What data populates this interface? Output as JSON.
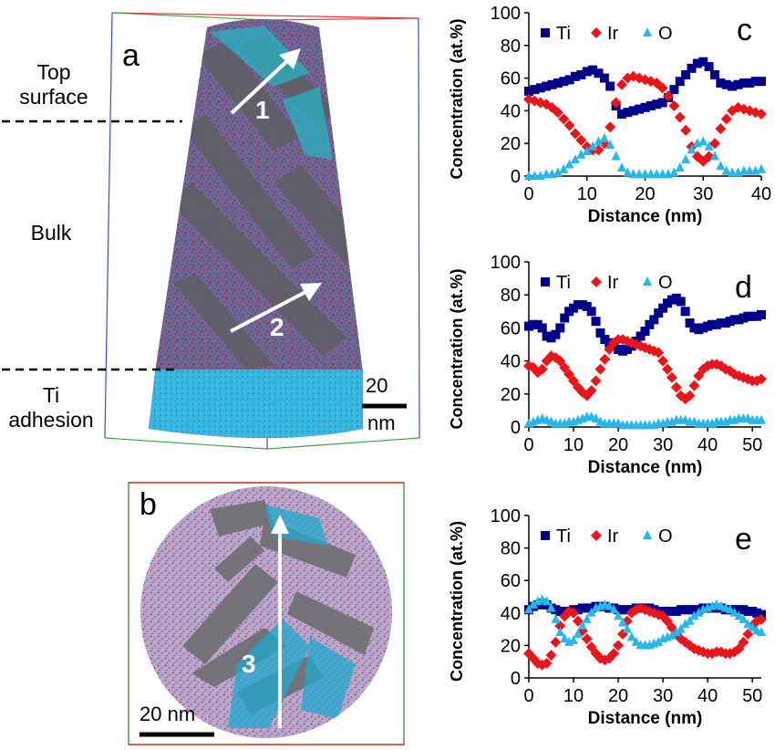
{
  "figure": {
    "panels": {
      "a": "a",
      "b": "b",
      "c": "c",
      "d": "d",
      "e": "e"
    },
    "region_labels": {
      "top_surface": "Top\nsurface",
      "bulk": "Bulk",
      "ti_adhesion": "Ti\nadhesion"
    },
    "arrows": {
      "one": "1",
      "two": "2",
      "three": "3"
    },
    "scale_bars": {
      "a_value": "20",
      "a_unit": "nm",
      "b": "20 nm"
    }
  },
  "chart_data": [
    {
      "panel": "c",
      "type": "scatter",
      "xlabel": "Distance (nm)",
      "ylabel": "Concentration (at.%)",
      "xlim": [
        0,
        40
      ],
      "ylim": [
        0,
        100
      ],
      "xticks": [
        0,
        10,
        20,
        30,
        40
      ],
      "yticks": [
        0,
        20,
        40,
        60,
        80,
        100
      ],
      "legend_position": "top",
      "series": [
        {
          "name": "Ti",
          "color": "#00008b",
          "marker": "square",
          "x": [
            0,
            1,
            2,
            3,
            4,
            5,
            6,
            7,
            8,
            9,
            10,
            11,
            12,
            13,
            14,
            15,
            16,
            17,
            18,
            19,
            20,
            21,
            22,
            23,
            24,
            25,
            26,
            27,
            28,
            29,
            30,
            31,
            32,
            33,
            34,
            35,
            36,
            37,
            38,
            39,
            40
          ],
          "y": [
            52,
            53,
            54,
            55,
            56,
            57,
            58,
            59,
            61,
            62,
            64,
            65,
            63,
            60,
            55,
            43,
            38,
            39,
            40,
            41,
            42,
            43,
            44,
            45,
            48,
            53,
            58,
            62,
            66,
            69,
            70,
            67,
            62,
            57,
            56,
            55,
            56,
            57,
            57,
            58,
            58
          ]
        },
        {
          "name": "Ir",
          "color": "#e8151b",
          "marker": "diamond",
          "x": [
            0,
            1,
            2,
            3,
            4,
            5,
            6,
            7,
            8,
            9,
            10,
            11,
            12,
            13,
            14,
            15,
            16,
            17,
            18,
            19,
            20,
            21,
            22,
            23,
            24,
            25,
            26,
            27,
            28,
            29,
            30,
            31,
            32,
            33,
            34,
            35,
            36,
            37,
            38,
            39,
            40
          ],
          "y": [
            47,
            46,
            45,
            44,
            42,
            39,
            35,
            31,
            26,
            22,
            18,
            16,
            16,
            20,
            30,
            45,
            56,
            60,
            61,
            60,
            59,
            58,
            57,
            54,
            49,
            43,
            36,
            28,
            18,
            12,
            9,
            12,
            20,
            29,
            35,
            40,
            42,
            41,
            40,
            39,
            38
          ]
        },
        {
          "name": "O",
          "color": "#29b6e8",
          "marker": "triangle",
          "x": [
            0,
            1,
            2,
            3,
            4,
            5,
            6,
            7,
            8,
            9,
            10,
            11,
            12,
            13,
            14,
            15,
            16,
            17,
            18,
            19,
            20,
            21,
            22,
            23,
            24,
            25,
            26,
            27,
            28,
            29,
            30,
            31,
            32,
            33,
            34,
            35,
            36,
            37,
            38,
            39,
            40
          ],
          "y": [
            0,
            0,
            0,
            1,
            1,
            2,
            4,
            7,
            10,
            13,
            15,
            18,
            21,
            23,
            19,
            12,
            5,
            2,
            1,
            1,
            1,
            1,
            1,
            1,
            1,
            2,
            5,
            10,
            16,
            20,
            21,
            18,
            12,
            6,
            3,
            2,
            2,
            3,
            3,
            3,
            4
          ]
        }
      ]
    },
    {
      "panel": "d",
      "type": "scatter",
      "xlabel": "Distance (nm)",
      "ylabel": "Concentration (at.%)",
      "xlim": [
        0,
        52
      ],
      "ylim": [
        0,
        100
      ],
      "xticks": [
        0,
        10,
        20,
        30,
        40,
        50
      ],
      "yticks": [
        0,
        20,
        40,
        60,
        80,
        100
      ],
      "legend_position": "top",
      "series": [
        {
          "name": "Ti",
          "color": "#00008b",
          "marker": "square",
          "x": [
            0,
            1,
            2,
            3,
            4,
            5,
            6,
            7,
            8,
            9,
            10,
            11,
            12,
            13,
            14,
            15,
            16,
            17,
            18,
            19,
            20,
            21,
            22,
            23,
            24,
            25,
            26,
            27,
            28,
            29,
            30,
            31,
            32,
            33,
            34,
            35,
            36,
            37,
            38,
            39,
            40,
            41,
            42,
            43,
            44,
            45,
            46,
            47,
            48,
            49,
            50,
            51,
            52
          ],
          "y": [
            61,
            62,
            62,
            60,
            55,
            54,
            56,
            60,
            66,
            70,
            72,
            74,
            74,
            73,
            70,
            64,
            57,
            53,
            51,
            49,
            47,
            46,
            47,
            49,
            52,
            55,
            58,
            62,
            65,
            69,
            72,
            75,
            77,
            78,
            76,
            70,
            63,
            60,
            59,
            60,
            61,
            62,
            62,
            63,
            63,
            64,
            65,
            65,
            66,
            67,
            67,
            67,
            68
          ]
        },
        {
          "name": "Ir",
          "color": "#e8151b",
          "marker": "diamond",
          "x": [
            0,
            1,
            2,
            3,
            4,
            5,
            6,
            7,
            8,
            9,
            10,
            11,
            12,
            13,
            14,
            15,
            16,
            17,
            18,
            19,
            20,
            21,
            22,
            23,
            24,
            25,
            26,
            27,
            28,
            29,
            30,
            31,
            32,
            33,
            34,
            35,
            36,
            37,
            38,
            39,
            40,
            41,
            42,
            43,
            44,
            45,
            46,
            47,
            48,
            49,
            50,
            51,
            52
          ],
          "y": [
            37,
            36,
            33,
            35,
            40,
            43,
            42,
            40,
            36,
            32,
            28,
            24,
            21,
            19,
            22,
            28,
            35,
            41,
            47,
            51,
            53,
            53,
            52,
            51,
            50,
            49,
            48,
            47,
            46,
            45,
            40,
            35,
            30,
            24,
            19,
            17,
            19,
            25,
            31,
            35,
            37,
            38,
            38,
            37,
            35,
            34,
            32,
            31,
            30,
            29,
            28,
            28,
            29
          ]
        },
        {
          "name": "O",
          "color": "#29b6e8",
          "marker": "triangle",
          "x": [
            0,
            1,
            2,
            3,
            4,
            5,
            6,
            7,
            8,
            9,
            10,
            11,
            12,
            13,
            14,
            15,
            16,
            17,
            18,
            19,
            20,
            21,
            22,
            23,
            24,
            25,
            26,
            27,
            28,
            29,
            30,
            31,
            32,
            33,
            34,
            35,
            36,
            37,
            38,
            39,
            40,
            41,
            42,
            43,
            44,
            45,
            46,
            47,
            48,
            49,
            50,
            51,
            52
          ],
          "y": [
            2,
            3,
            4,
            5,
            4,
            3,
            2,
            2,
            2,
            3,
            3,
            4,
            5,
            6,
            6,
            5,
            3,
            2,
            2,
            2,
            2,
            1,
            1,
            1,
            1,
            1,
            1,
            1,
            1,
            2,
            2,
            3,
            3,
            4,
            4,
            4,
            3,
            3,
            2,
            2,
            2,
            2,
            3,
            3,
            3,
            4,
            4,
            5,
            5,
            5,
            4,
            4,
            4
          ]
        }
      ]
    },
    {
      "panel": "e",
      "type": "scatter",
      "xlabel": "Distance (nm)",
      "ylabel": "Concentration (at.%)",
      "xlim": [
        0,
        52
      ],
      "ylim": [
        0,
        100
      ],
      "xticks": [
        0,
        10,
        20,
        30,
        40,
        50
      ],
      "yticks": [
        0,
        20,
        40,
        60,
        80,
        100
      ],
      "legend_position": "top",
      "series": [
        {
          "name": "Ti",
          "color": "#00008b",
          "marker": "square",
          "x": [
            0,
            1,
            2,
            3,
            4,
            5,
            6,
            7,
            8,
            9,
            10,
            11,
            12,
            13,
            14,
            15,
            16,
            17,
            18,
            19,
            20,
            21,
            22,
            23,
            24,
            25,
            26,
            27,
            28,
            29,
            30,
            31,
            32,
            33,
            34,
            35,
            36,
            37,
            38,
            39,
            40,
            41,
            42,
            43,
            44,
            45,
            46,
            47,
            48,
            49,
            50,
            51,
            52
          ],
          "y": [
            42,
            44,
            45,
            46,
            45,
            43,
            42,
            41,
            41,
            41,
            42,
            42,
            43,
            43,
            43,
            44,
            44,
            44,
            43,
            43,
            42,
            42,
            42,
            42,
            43,
            43,
            43,
            43,
            42,
            41,
            41,
            41,
            41,
            41,
            42,
            42,
            42,
            42,
            42,
            43,
            43,
            43,
            43,
            43,
            42,
            42,
            42,
            42,
            42,
            41,
            41,
            40,
            39
          ]
        },
        {
          "name": "Ir",
          "color": "#e8151b",
          "marker": "diamond",
          "x": [
            0,
            1,
            2,
            3,
            4,
            5,
            6,
            7,
            8,
            9,
            10,
            11,
            12,
            13,
            14,
            15,
            16,
            17,
            18,
            19,
            20,
            21,
            22,
            23,
            24,
            25,
            26,
            27,
            28,
            29,
            30,
            31,
            32,
            33,
            34,
            35,
            36,
            37,
            38,
            39,
            40,
            41,
            42,
            43,
            44,
            45,
            46,
            47,
            48,
            49,
            50,
            51,
            52
          ],
          "y": [
            15,
            12,
            9,
            8,
            9,
            14,
            22,
            32,
            38,
            41,
            40,
            35,
            29,
            24,
            19,
            15,
            12,
            11,
            12,
            15,
            20,
            27,
            35,
            40,
            42,
            43,
            42,
            41,
            40,
            39,
            38,
            35,
            31,
            27,
            24,
            22,
            20,
            18,
            17,
            16,
            15,
            15,
            16,
            16,
            15,
            15,
            16,
            18,
            22,
            27,
            32,
            35,
            36
          ]
        },
        {
          "name": "O",
          "color": "#29b6e8",
          "marker": "triangle",
          "x": [
            0,
            1,
            2,
            3,
            4,
            5,
            6,
            7,
            8,
            9,
            10,
            11,
            12,
            13,
            14,
            15,
            16,
            17,
            18,
            19,
            20,
            21,
            22,
            23,
            24,
            25,
            26,
            27,
            28,
            29,
            30,
            31,
            32,
            33,
            34,
            35,
            36,
            37,
            38,
            39,
            40,
            41,
            42,
            43,
            44,
            45,
            46,
            47,
            48,
            49,
            50,
            51,
            52
          ],
          "y": [
            42,
            45,
            47,
            48,
            47,
            43,
            36,
            28,
            24,
            22,
            23,
            27,
            32,
            36,
            40,
            43,
            44,
            45,
            44,
            42,
            38,
            34,
            30,
            25,
            22,
            20,
            20,
            20,
            21,
            22,
            24,
            25,
            26,
            28,
            30,
            33,
            35,
            38,
            40,
            42,
            43,
            44,
            45,
            44,
            43,
            42,
            40,
            38,
            36,
            33,
            31,
            29,
            28
          ]
        }
      ]
    }
  ]
}
